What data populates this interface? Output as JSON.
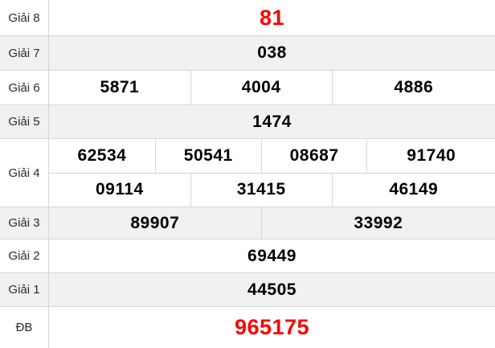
{
  "colors": {
    "highlight": "#fe0000",
    "row_shade": "#f1f1f1",
    "border": "#d6d6d6",
    "number_ink": "#000000"
  },
  "table": {
    "rows": [
      {
        "label": "Giải 8",
        "highlight": true,
        "sub_rows": [
          [
            "81"
          ]
        ]
      },
      {
        "label": "Giải 7",
        "highlight": false,
        "sub_rows": [
          [
            "038"
          ]
        ]
      },
      {
        "label": "Giải 6",
        "highlight": false,
        "sub_rows": [
          [
            "5871",
            "4004",
            "4886"
          ]
        ]
      },
      {
        "label": "Giải 5",
        "highlight": false,
        "sub_rows": [
          [
            "1474"
          ]
        ]
      },
      {
        "label": "Giải 4",
        "highlight": false,
        "sub_rows": [
          [
            "62534",
            "50541",
            "08687",
            "91740"
          ],
          [
            "09114",
            "31415",
            "46149"
          ]
        ]
      },
      {
        "label": "Giải 3",
        "highlight": false,
        "sub_rows": [
          [
            "89907",
            "33992"
          ]
        ]
      },
      {
        "label": "Giải 2",
        "highlight": false,
        "sub_rows": [
          [
            "69449"
          ]
        ]
      },
      {
        "label": "Giải 1",
        "highlight": false,
        "sub_rows": [
          [
            "44505"
          ]
        ]
      },
      {
        "label": "ĐB",
        "highlight": true,
        "sub_rows": [
          [
            "965175"
          ]
        ]
      }
    ]
  }
}
